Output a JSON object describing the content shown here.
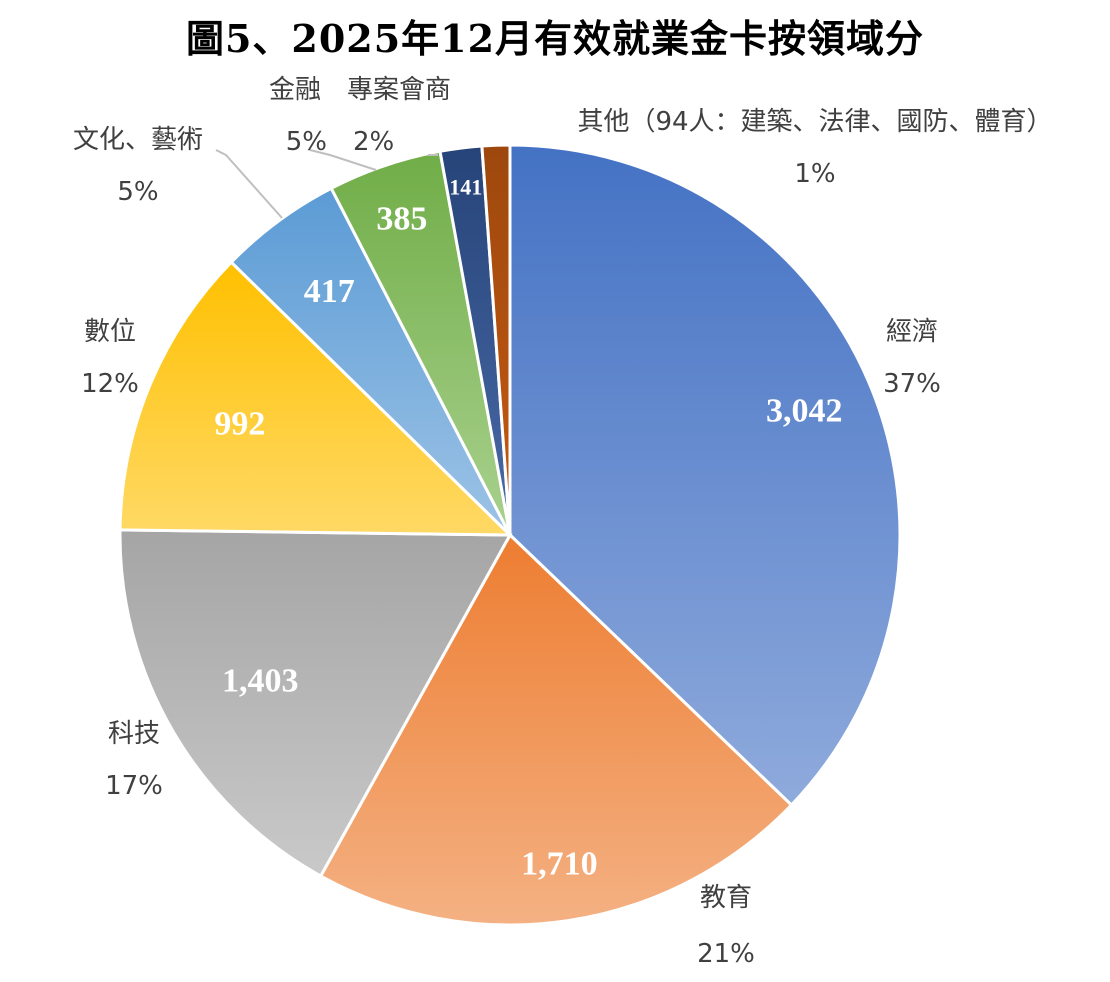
{
  "chart_data": {
    "type": "pie",
    "title": "圖5、2025年12月有效就業金卡按領域分",
    "slices": [
      {
        "category": "經濟",
        "value": 3042,
        "value_label": "3,042",
        "percent_label": "37%",
        "color_top": "#4472c4",
        "color_bottom": "#8faadc"
      },
      {
        "category": "教育",
        "value": 1710,
        "value_label": "1,710",
        "percent_label": "21%",
        "color_top": "#ed7d31",
        "color_bottom": "#f4b183"
      },
      {
        "category": "科技",
        "value": 1403,
        "value_label": "1,403",
        "percent_label": "17%",
        "color_top": "#a5a5a5",
        "color_bottom": "#c9c9c9"
      },
      {
        "category": "數位",
        "value": 992,
        "value_label": "992",
        "percent_label": "12%",
        "color_top": "#ffc000",
        "color_bottom": "#ffd966"
      },
      {
        "category": "文化、藝術",
        "value": 417,
        "value_label": "417",
        "percent_label": "5%",
        "color_top": "#5b9bd5",
        "color_bottom": "#9dc3e6"
      },
      {
        "category": "金融　專案會商",
        "value": 385,
        "value_label": "385",
        "percent_label": "5%　2%",
        "color_top": "#70ad47",
        "color_bottom": "#a9d18e"
      },
      {
        "category": "",
        "value": 141,
        "value_label": "141",
        "percent_label": "",
        "color_top": "#264478",
        "color_bottom": "#4a6aa8"
      },
      {
        "category": "其他（94人：建築、法律、國防、體育）",
        "value": 94,
        "value_label": "",
        "percent_label": "1%",
        "color_top": "#9e480e",
        "color_bottom": "#c55a11"
      }
    ]
  }
}
